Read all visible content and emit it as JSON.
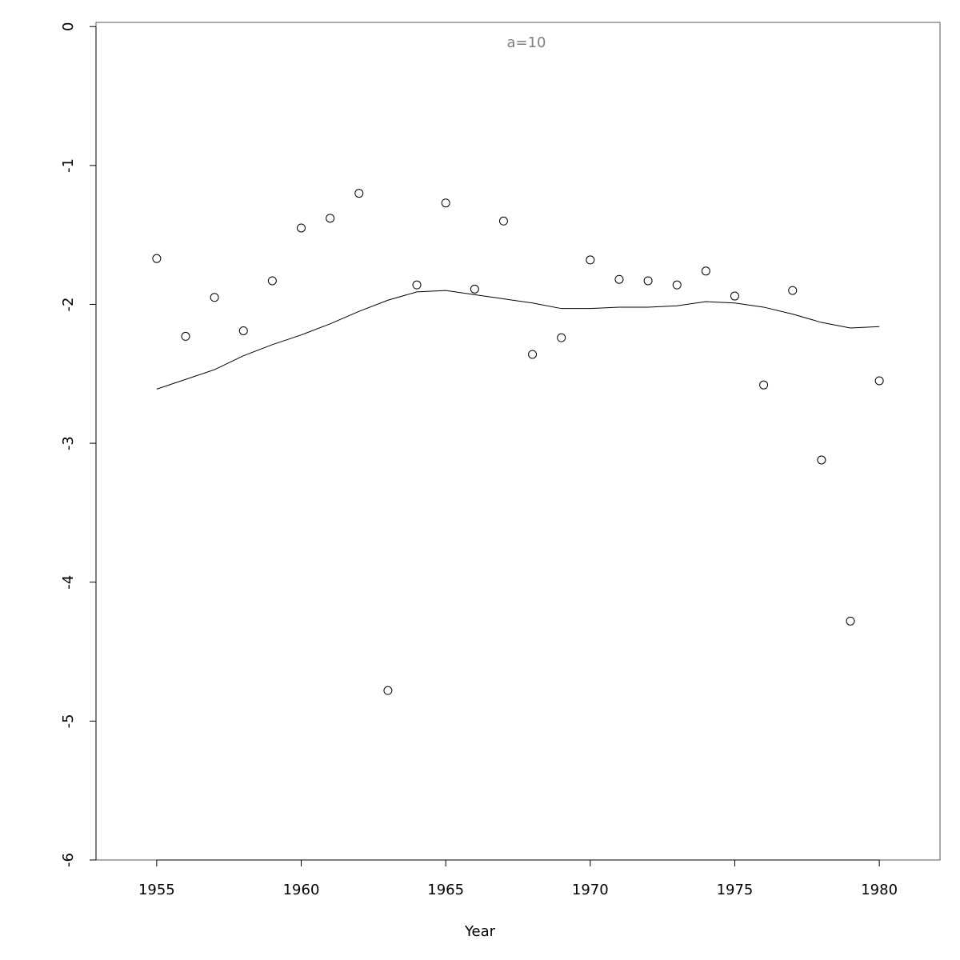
{
  "chart_data": {
    "type": "scatter",
    "title": "a=10",
    "xlabel": "Year",
    "x": [
      1955,
      1956,
      1957,
      1958,
      1959,
      1960,
      1961,
      1962,
      1963,
      1964,
      1965,
      1966,
      1967,
      1968,
      1969,
      1970,
      1971,
      1972,
      1973,
      1974,
      1975,
      1976,
      1977,
      1978,
      1979,
      1980
    ],
    "series": [
      {
        "mode": "markers",
        "color": "#000000",
        "values": [
          -1.67,
          -2.23,
          -1.95,
          -2.19,
          -1.83,
          -1.45,
          -1.38,
          -1.2,
          -4.78,
          -1.86,
          -1.27,
          -1.89,
          -1.4,
          -2.36,
          -2.24,
          -1.68,
          -1.82,
          -1.83,
          -1.86,
          -1.76,
          -1.94,
          -2.58,
          -1.9,
          -3.12,
          -4.28,
          -2.55
        ]
      },
      {
        "mode": "line",
        "color": "#000000",
        "values": [
          -2.61,
          -2.54,
          -2.47,
          -2.37,
          -2.29,
          -2.22,
          -2.14,
          -2.05,
          -1.97,
          -1.91,
          -1.9,
          -1.93,
          -1.96,
          -1.99,
          -2.03,
          -2.03,
          -2.02,
          -2.02,
          -2.01,
          -1.98,
          -1.99,
          -2.02,
          -2.07,
          -2.13,
          -2.17,
          -2.16
        ]
      }
    ],
    "xlim": [
      1952.9,
      1982.1
    ],
    "xticks": [
      1955,
      1960,
      1965,
      1970,
      1975,
      1980
    ],
    "ylim": [
      -6,
      0.03
    ],
    "yticks": [
      0,
      -1,
      -2,
      -3,
      -4,
      -5,
      -6
    ]
  }
}
